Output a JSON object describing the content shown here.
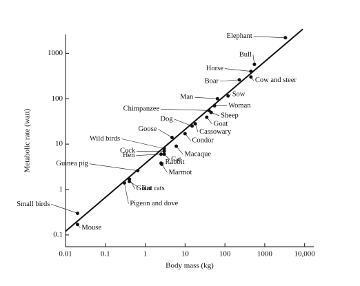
{
  "chart_data": {
    "type": "scatter",
    "xlabel": "Body mass (kg)",
    "ylabel": "Metabolic rate (watt)",
    "log_x": true,
    "log_y": true,
    "color": "#111111",
    "xlim": [
      0.01,
      17000
    ],
    "ylim": [
      0.055,
      2600
    ],
    "xticks": [
      0.01,
      0.1,
      1,
      10,
      100,
      1000,
      {
        "value": 10000,
        "label": "10,000"
      }
    ],
    "yticks": [
      0.1,
      1,
      10,
      100,
      1000
    ],
    "points": [
      {
        "name": "Elephant",
        "x": 3300,
        "y": 2200
      },
      {
        "name": "Bull",
        "x": 550,
        "y": 570
      },
      {
        "name": "Horse",
        "x": 450,
        "y": 400
      },
      {
        "name": "Boar",
        "x": 230,
        "y": 260
      },
      {
        "name": "Cow and steer",
        "x": 450,
        "y": 300
      },
      {
        "name": "Man",
        "x": 65,
        "y": 100
      },
      {
        "name": "Sow",
        "x": 120,
        "y": 115
      },
      {
        "name": "Chimpanzee",
        "x": 40,
        "y": 55
      },
      {
        "name": "Woman",
        "x": 55,
        "y": 70
      },
      {
        "name": "Sheep",
        "x": 45,
        "y": 50
      },
      {
        "name": "Dog",
        "x": 15,
        "y": 25
      },
      {
        "name": "Goat",
        "x": 35,
        "y": 39
      },
      {
        "name": "Cassowary",
        "x": 18,
        "y": 28
      },
      {
        "name": "Goose",
        "x": 4.7,
        "y": 14
      },
      {
        "name": "Condor",
        "x": 10,
        "y": 17
      },
      {
        "name": "Wild birds",
        "x": 3,
        "y": 8
      },
      {
        "name": "Macaque",
        "x": 6,
        "y": 9
      },
      {
        "name": "Cock",
        "x": 3,
        "y": 7
      },
      {
        "name": "Cat",
        "x": 3,
        "y": 6
      },
      {
        "name": "Hen",
        "x": 2.5,
        "y": 6
      },
      {
        "name": "Rabbit",
        "x": 2.5,
        "y": 3.8
      },
      {
        "name": "Marmot",
        "x": 2.6,
        "y": 3.6
      },
      {
        "name": "Guinea pig",
        "x": 0.65,
        "y": 2.6
      },
      {
        "name": "Giant rats",
        "x": 0.4,
        "y": 1.7
      },
      {
        "name": "Rat",
        "x": 0.4,
        "y": 1.5
      },
      {
        "name": "Small birds",
        "x": 0.02,
        "y": 0.3
      },
      {
        "name": "Pigeon and dove",
        "x": 0.3,
        "y": 1.4
      },
      {
        "name": "Mouse",
        "x": 0.02,
        "y": 0.17
      }
    ],
    "fit": {
      "x": [
        0.01,
        9000
      ],
      "y": [
        0.12,
        3400
      ]
    }
  }
}
